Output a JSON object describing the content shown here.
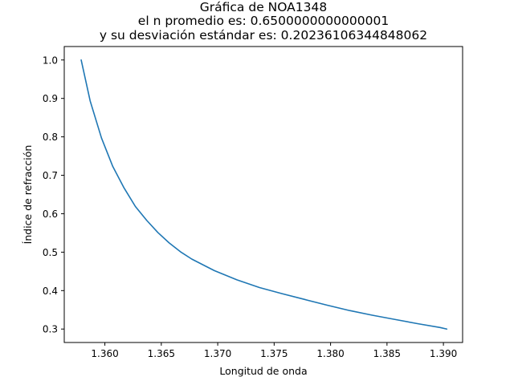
{
  "chart_data": {
    "type": "line",
    "title_lines": [
      "Gráfica de NOA1348",
      "el n promedio es: 0.6500000000000001",
      "y su desviación estándar es: 0.20236106344848062"
    ],
    "xlabel": "Longitud de onda",
    "ylabel": "Índice de refracción",
    "xlim": [
      1.3564,
      1.3917
    ],
    "ylim": [
      0.265,
      1.035
    ],
    "x_ticks": [
      "1.360",
      "1.365",
      "1.370",
      "1.375",
      "1.380",
      "1.385",
      "1.390"
    ],
    "y_ticks": [
      "0.3",
      "0.4",
      "0.5",
      "0.6",
      "0.7",
      "0.8",
      "0.9",
      "1.0"
    ],
    "grid": false,
    "series": [
      {
        "color": "#1f77b4",
        "points": [
          [
            1.3579,
            1.0
          ],
          [
            1.3587,
            0.893
          ],
          [
            1.3597,
            0.797
          ],
          [
            1.3607,
            0.723
          ],
          [
            1.3617,
            0.667
          ],
          [
            1.3627,
            0.619
          ],
          [
            1.3637,
            0.583
          ],
          [
            1.3647,
            0.551
          ],
          [
            1.3657,
            0.524
          ],
          [
            1.3667,
            0.501
          ],
          [
            1.3677,
            0.482
          ],
          [
            1.3697,
            0.452
          ],
          [
            1.3717,
            0.428
          ],
          [
            1.3737,
            0.408
          ],
          [
            1.3757,
            0.392
          ],
          [
            1.3777,
            0.377
          ],
          [
            1.3797,
            0.362
          ],
          [
            1.3817,
            0.348
          ],
          [
            1.3837,
            0.336
          ],
          [
            1.3857,
            0.325
          ],
          [
            1.3877,
            0.314
          ],
          [
            1.3897,
            0.304
          ],
          [
            1.3903,
            0.3
          ]
        ]
      }
    ]
  }
}
